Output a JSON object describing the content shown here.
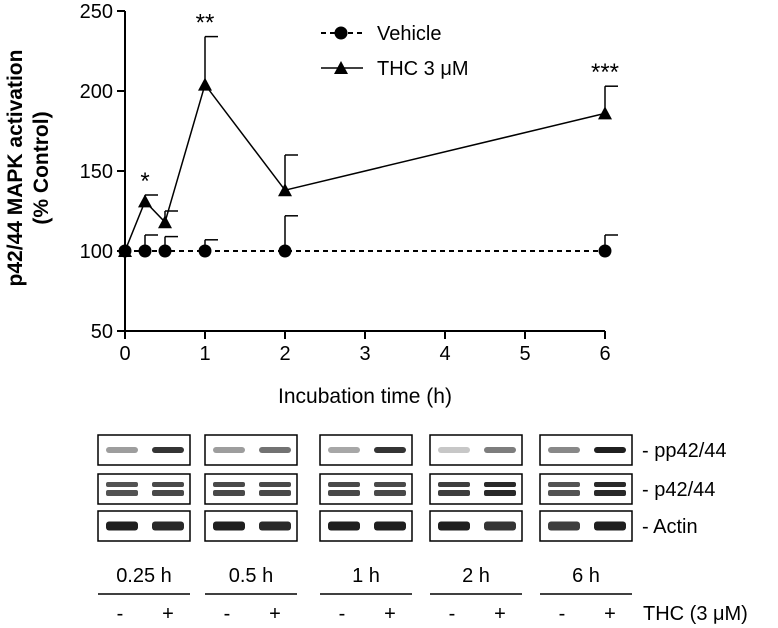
{
  "chart_data": {
    "type": "line",
    "xlabel": "Incubation time (h)",
    "ylabel_line1": "p42/44 MAPK activation",
    "ylabel_line2": "(% Control)",
    "xlim": [
      0,
      6
    ],
    "ylim": [
      50,
      250
    ],
    "x_ticks": [
      0,
      1,
      2,
      3,
      4,
      5,
      6
    ],
    "y_ticks": [
      50,
      100,
      150,
      200,
      250
    ],
    "grid": false,
    "legend_position": "top-center",
    "series": [
      {
        "name": "Vehicle",
        "marker": "circle",
        "line_style": "dashed",
        "x": [
          0,
          0.25,
          0.5,
          1,
          2,
          6
        ],
        "y": [
          100,
          100,
          100,
          100,
          100,
          100
        ],
        "error": [
          0,
          10,
          9,
          7,
          22,
          10
        ]
      },
      {
        "name": "THC 3 μM",
        "marker": "triangle",
        "line_style": "solid",
        "x": [
          0,
          0.25,
          0.5,
          1,
          2,
          6
        ],
        "y": [
          100,
          131,
          118,
          204,
          138,
          186
        ],
        "error": [
          0,
          4,
          7,
          30,
          22,
          17
        ]
      }
    ],
    "annotations": [
      {
        "x": 0.25,
        "text": "*"
      },
      {
        "x": 1,
        "text": "**"
      },
      {
        "x": 6,
        "text": "***"
      }
    ]
  },
  "blot": {
    "row_labels": [
      "- pp42/44",
      "- p42/44",
      "- Actin"
    ],
    "time_labels": [
      "0.25 h",
      "0.5 h",
      "1 h",
      "2 h",
      "6 h"
    ],
    "minus_label": "-",
    "plus_label": "+",
    "treatment_label": "THC (3 μM)"
  }
}
